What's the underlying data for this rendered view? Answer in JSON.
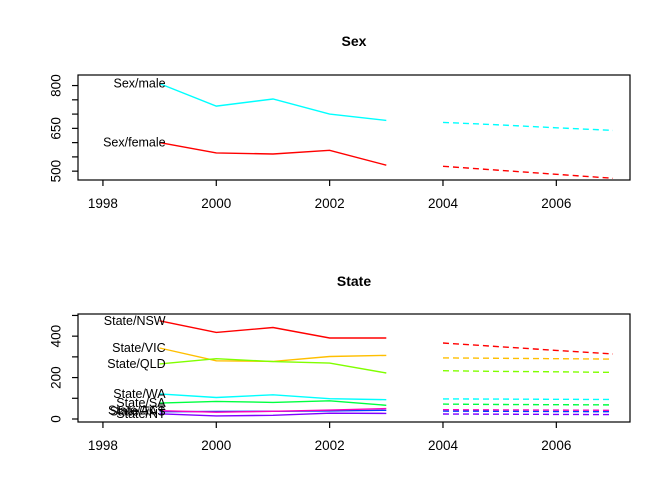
{
  "figure": {
    "background": "#FFFFFF",
    "text_color": "#000000",
    "axis_color": "#000000"
  },
  "chart_data": [
    {
      "type": "line",
      "title": "Sex",
      "xlabel": "",
      "ylabel": "",
      "grid": false,
      "legend_position": "inline-labels",
      "x_solid": [
        1999,
        2000,
        2001,
        2002,
        2003
      ],
      "x_dashed": [
        2004,
        2005,
        2006,
        2007
      ],
      "x_ticks": [
        1998,
        2000,
        2002,
        2004,
        2006
      ],
      "xlim": [
        1997.56,
        2007.3
      ],
      "ylim": [
        469,
        837
      ],
      "y_ticks_all": [
        500,
        550,
        600,
        650,
        700,
        750,
        800
      ],
      "y_ticks_labeled": [
        500,
        650,
        800
      ],
      "series": [
        {
          "name": "Sex/male",
          "color": "#00FFFF",
          "solid": [
            807,
            728,
            753,
            700,
            678
          ],
          "dashed": [
            671,
            662,
            652,
            643
          ]
        },
        {
          "name": "Sex/female",
          "color": "#FF0000",
          "solid": [
            600,
            564,
            560,
            573,
            521
          ],
          "dashed": [
            517,
            503,
            489,
            475
          ]
        }
      ]
    },
    {
      "type": "line",
      "title": "State",
      "xlabel": "",
      "ylabel": "",
      "grid": false,
      "legend_position": "inline-labels",
      "x_solid": [
        1999,
        2000,
        2001,
        2002,
        2003
      ],
      "x_dashed": [
        2004,
        2005,
        2006,
        2007
      ],
      "x_ticks": [
        1998,
        2000,
        2002,
        2004,
        2006
      ],
      "xlim": [
        1997.56,
        2007.3
      ],
      "ylim": [
        -14.5,
        507
      ],
      "y_ticks_all": [
        0,
        100,
        200,
        300,
        400,
        500
      ],
      "y_ticks_labeled": [
        0,
        200,
        400
      ],
      "series": [
        {
          "name": "State/NSW",
          "color": "#FF0000",
          "solid": [
            474,
            418,
            442,
            391,
            391
          ],
          "dashed": [
            367,
            349,
            331,
            314
          ]
        },
        {
          "name": "State/VIC",
          "color": "#FFBF00",
          "solid": [
            343,
            281,
            278,
            302,
            307
          ],
          "dashed": [
            295,
            293,
            291,
            289
          ]
        },
        {
          "name": "State/QLD",
          "color": "#80FF00",
          "solid": [
            266,
            291,
            277,
            270,
            222
          ],
          "dashed": [
            233,
            230,
            228,
            225
          ]
        },
        {
          "name": "State/WA",
          "color": "#00FFFF",
          "solid": [
            121,
            104,
            117,
            98,
            93
          ],
          "dashed": [
            97,
            96,
            95,
            94
          ]
        },
        {
          "name": "State/SA",
          "color": "#00FF40",
          "solid": [
            77,
            85,
            80,
            88,
            66
          ],
          "dashed": [
            72,
            70,
            69,
            68
          ]
        },
        {
          "name": "State/TAS",
          "color": "#0040FF",
          "solid": [
            35,
            36,
            37,
            39,
            42
          ],
          "dashed": [
            38,
            37,
            36,
            35
          ]
        },
        {
          "name": "State/NT",
          "color": "#8000FF",
          "solid": [
            25,
            15,
            18,
            28,
            27
          ],
          "dashed": [
            24,
            23,
            22,
            21
          ]
        },
        {
          "name": "State/ACT",
          "color": "#FF00BF",
          "solid": [
            40,
            33,
            37,
            43,
            50
          ],
          "dashed": [
            45,
            44,
            43,
            42
          ]
        }
      ]
    }
  ]
}
